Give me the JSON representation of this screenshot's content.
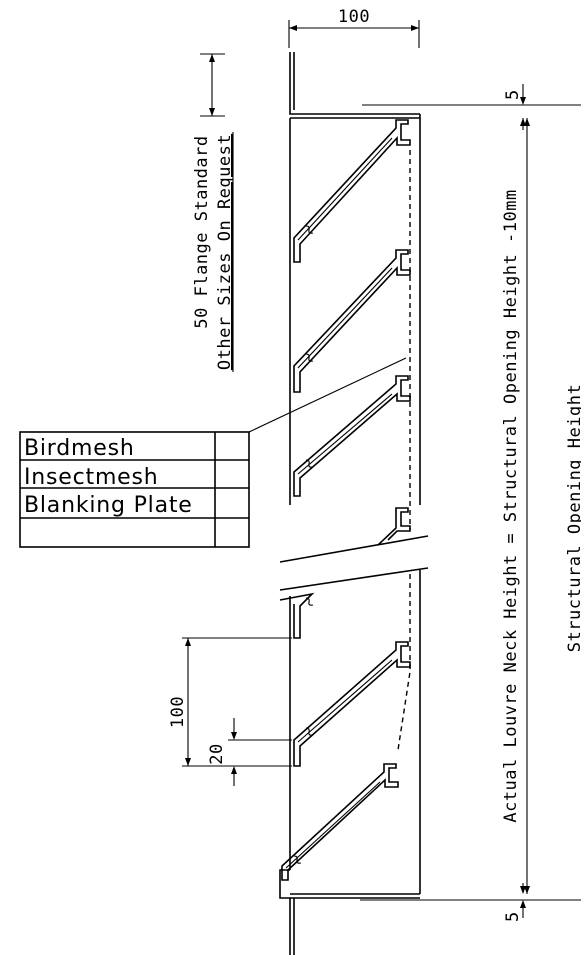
{
  "dimensions": {
    "top_width": "100",
    "top_gap": "5",
    "bottom_gap": "5",
    "pitch": "100",
    "lip": "20"
  },
  "notes": {
    "flange_standard": "50 Flange Standard",
    "other_sizes": "Other Sizes On Request",
    "neck_height": "Actual Louvre Neck Height = Structural Opening Height -10mm",
    "structural_opening": "Structural Opening Height"
  },
  "legend": {
    "rows": [
      "Birdmesh",
      "Insectmesh",
      "Blanking Plate"
    ]
  }
}
